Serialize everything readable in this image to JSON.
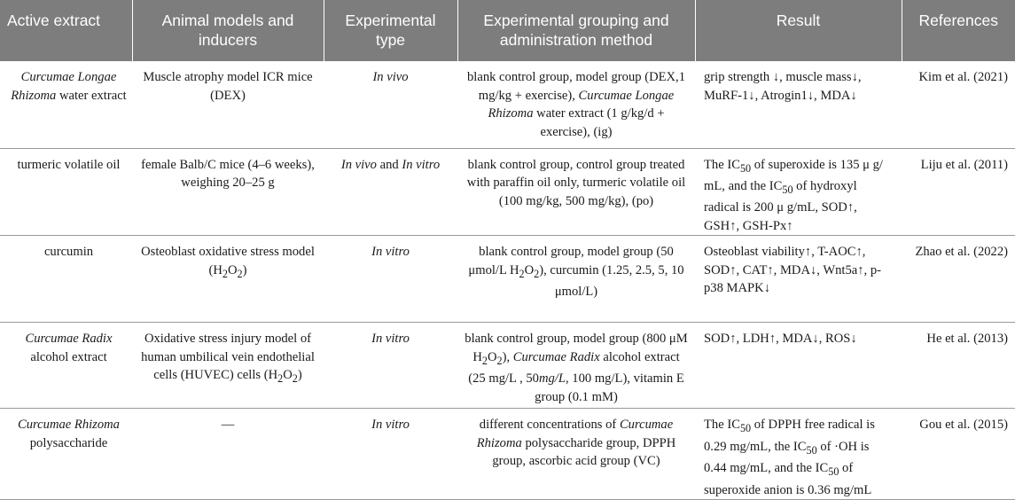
{
  "headers": [
    "Active extract",
    "Animal models and inducers",
    "Experimental type",
    "Experimental grouping and administration method",
    "Result",
    "References"
  ],
  "rows": [
    {
      "extract": [
        {
          "t": "Curcumae Longae Rhizoma",
          "i": true
        },
        {
          "t": " water extract",
          "i": false
        }
      ],
      "model": [
        {
          "t": "Muscle atrophy model ICR mice (DEX)"
        }
      ],
      "type": [
        {
          "t": "In vivo",
          "i": true
        }
      ],
      "grouping": [
        {
          "t": "blank control group, model group (DEX,1 mg/kg + exercise), "
        },
        {
          "t": "Curcumae Longae Rhizoma",
          "i": true
        },
        {
          "t": " water extract (1 g/kg/d + exercise), (ig)"
        }
      ],
      "result": [
        {
          "t": "grip strength ↓, muscle mass↓, MuRF-1↓, Atrogin1↓, MDA↓"
        }
      ],
      "ref": "Kim et al. (2021)"
    },
    {
      "extract": [
        {
          "t": "turmeric volatile oil"
        }
      ],
      "model": [
        {
          "t": "female Balb/C mice (4–6 weeks), weighing 20–25 g"
        }
      ],
      "type": [
        {
          "t": "In vivo",
          "i": true
        },
        {
          "t": " and "
        },
        {
          "t": "In vitro",
          "i": true
        }
      ],
      "grouping": [
        {
          "t": "blank control group, control group treated with paraffin oil only, turmeric volatile oil (100 mg/kg, 500 mg/kg), (po)"
        }
      ],
      "result": [
        {
          "t": "The IC"
        },
        {
          "t": "50",
          "sub": true
        },
        {
          "t": " of superoxide is 135 μ g/ mL, and the IC"
        },
        {
          "t": "50",
          "sub": true
        },
        {
          "t": " of hydroxyl radical is 200 μ g/mL, SOD↑, GSH↑, GSH-Px↑"
        }
      ],
      "ref": "Liju et al. (2011)"
    },
    {
      "extract": [
        {
          "t": "curcumin"
        }
      ],
      "model": [
        {
          "t": "Osteoblast oxidative stress model (H"
        },
        {
          "t": "2",
          "sub": true
        },
        {
          "t": "O"
        },
        {
          "t": "2",
          "sub": true
        },
        {
          "t": ")"
        }
      ],
      "type": [
        {
          "t": "In vitro",
          "i": true
        }
      ],
      "grouping": [
        {
          "t": "blank control group, model group (50 μmol/L H"
        },
        {
          "t": "2",
          "sub": true
        },
        {
          "t": "O"
        },
        {
          "t": "2",
          "sub": true
        },
        {
          "t": "), curcumin (1.25, 2.5, 5, 10 μmol/L)"
        }
      ],
      "result": [
        {
          "t": "Osteoblast viability↑, T-AOC↑, SOD↑, CAT↑, MDA↓, Wnt5a↑, p-p38 MAPK↓"
        }
      ],
      "ref": "Zhao et al. (2022)"
    },
    {
      "extract": [
        {
          "t": "Curcumae Radix",
          "i": true
        },
        {
          "t": " alcohol extract"
        }
      ],
      "model": [
        {
          "t": "Oxidative stress injury model of human umbilical vein endothelial cells (HUVEC) cells (H"
        },
        {
          "t": "2",
          "sub": true
        },
        {
          "t": "O"
        },
        {
          "t": "2",
          "sub": true
        },
        {
          "t": ")"
        }
      ],
      "type": [
        {
          "t": "In vitro",
          "i": true
        }
      ],
      "grouping": [
        {
          "t": "blank control group, model group (800 μM H"
        },
        {
          "t": "2",
          "sub": true
        },
        {
          "t": "O"
        },
        {
          "t": "2",
          "sub": true
        },
        {
          "t": "), "
        },
        {
          "t": "Curcumae Radix",
          "i": true
        },
        {
          "t": " alcohol extract (25 mg/L , 50"
        },
        {
          "t": "mg/L",
          "i": true
        },
        {
          "t": ", 100 mg/L), vitamin E group (0.1 mM)"
        }
      ],
      "result": [
        {
          "t": "SOD↑, LDH↑, MDA↓, ROS↓"
        }
      ],
      "ref": "He et al. (2013)"
    },
    {
      "extract": [
        {
          "t": "Curcumae Rhizoma",
          "i": true
        },
        {
          "t": " polysaccharide"
        }
      ],
      "model": [
        {
          "t": "—"
        }
      ],
      "type": [
        {
          "t": "In vitro",
          "i": true
        }
      ],
      "grouping": [
        {
          "t": "different concentrations of "
        },
        {
          "t": "Curcumae Rhizoma",
          "i": true
        },
        {
          "t": " polysaccharide group, DPPH group, ascorbic acid group (VC)"
        }
      ],
      "result": [
        {
          "t": "The IC"
        },
        {
          "t": "50",
          "sub": true
        },
        {
          "t": " of DPPH free radical is 0.29 mg/mL, the IC"
        },
        {
          "t": "50",
          "sub": true
        },
        {
          "t": " of ·OH is 0.44 mg/mL, and the IC"
        },
        {
          "t": "50",
          "sub": true
        },
        {
          "t": " of superoxide anion is 0.36 mg/mL"
        }
      ],
      "ref": "Gou et al. (2015)"
    }
  ]
}
